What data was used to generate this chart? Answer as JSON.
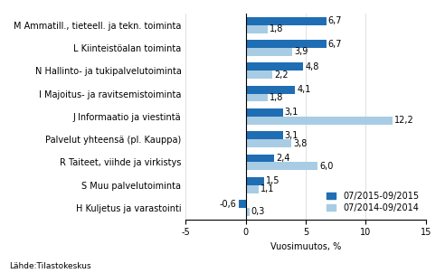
{
  "categories": [
    "M Ammatill., tieteell. ja tekn. toiminta",
    "L Kiinteistöalan toiminta",
    "N Hallinto- ja tukipalvelutoiminta",
    "I Majoitus- ja ravitsemistoiminta",
    "J Informaatio ja viestintä",
    "Palvelut yhteensä (pl. Kauppa)",
    "R Taiteet, viihde ja virkistys",
    "S Muu palvelutoiminta",
    "H Kuljetus ja varastointi"
  ],
  "values_2015": [
    6.7,
    6.7,
    4.8,
    4.1,
    3.1,
    3.1,
    2.4,
    1.5,
    -0.6
  ],
  "values_2014": [
    1.8,
    3.9,
    2.2,
    1.8,
    12.2,
    3.8,
    6.0,
    1.1,
    0.3
  ],
  "color_2015": "#1f6eb4",
  "color_2014": "#a8cce4",
  "legend_2015": "07/2015-09/2015",
  "legend_2014": "07/2014-09/2014",
  "xlabel": "Vuosimuutos, %",
  "footnote": "Lähde:Tilastokeskus",
  "xlim": [
    -5,
    15
  ],
  "xticks": [
    -5,
    0,
    5,
    10,
    15
  ],
  "bar_height": 0.35,
  "label_fontsize": 7.0,
  "tick_fontsize": 7.0,
  "legend_fontsize": 7.0
}
